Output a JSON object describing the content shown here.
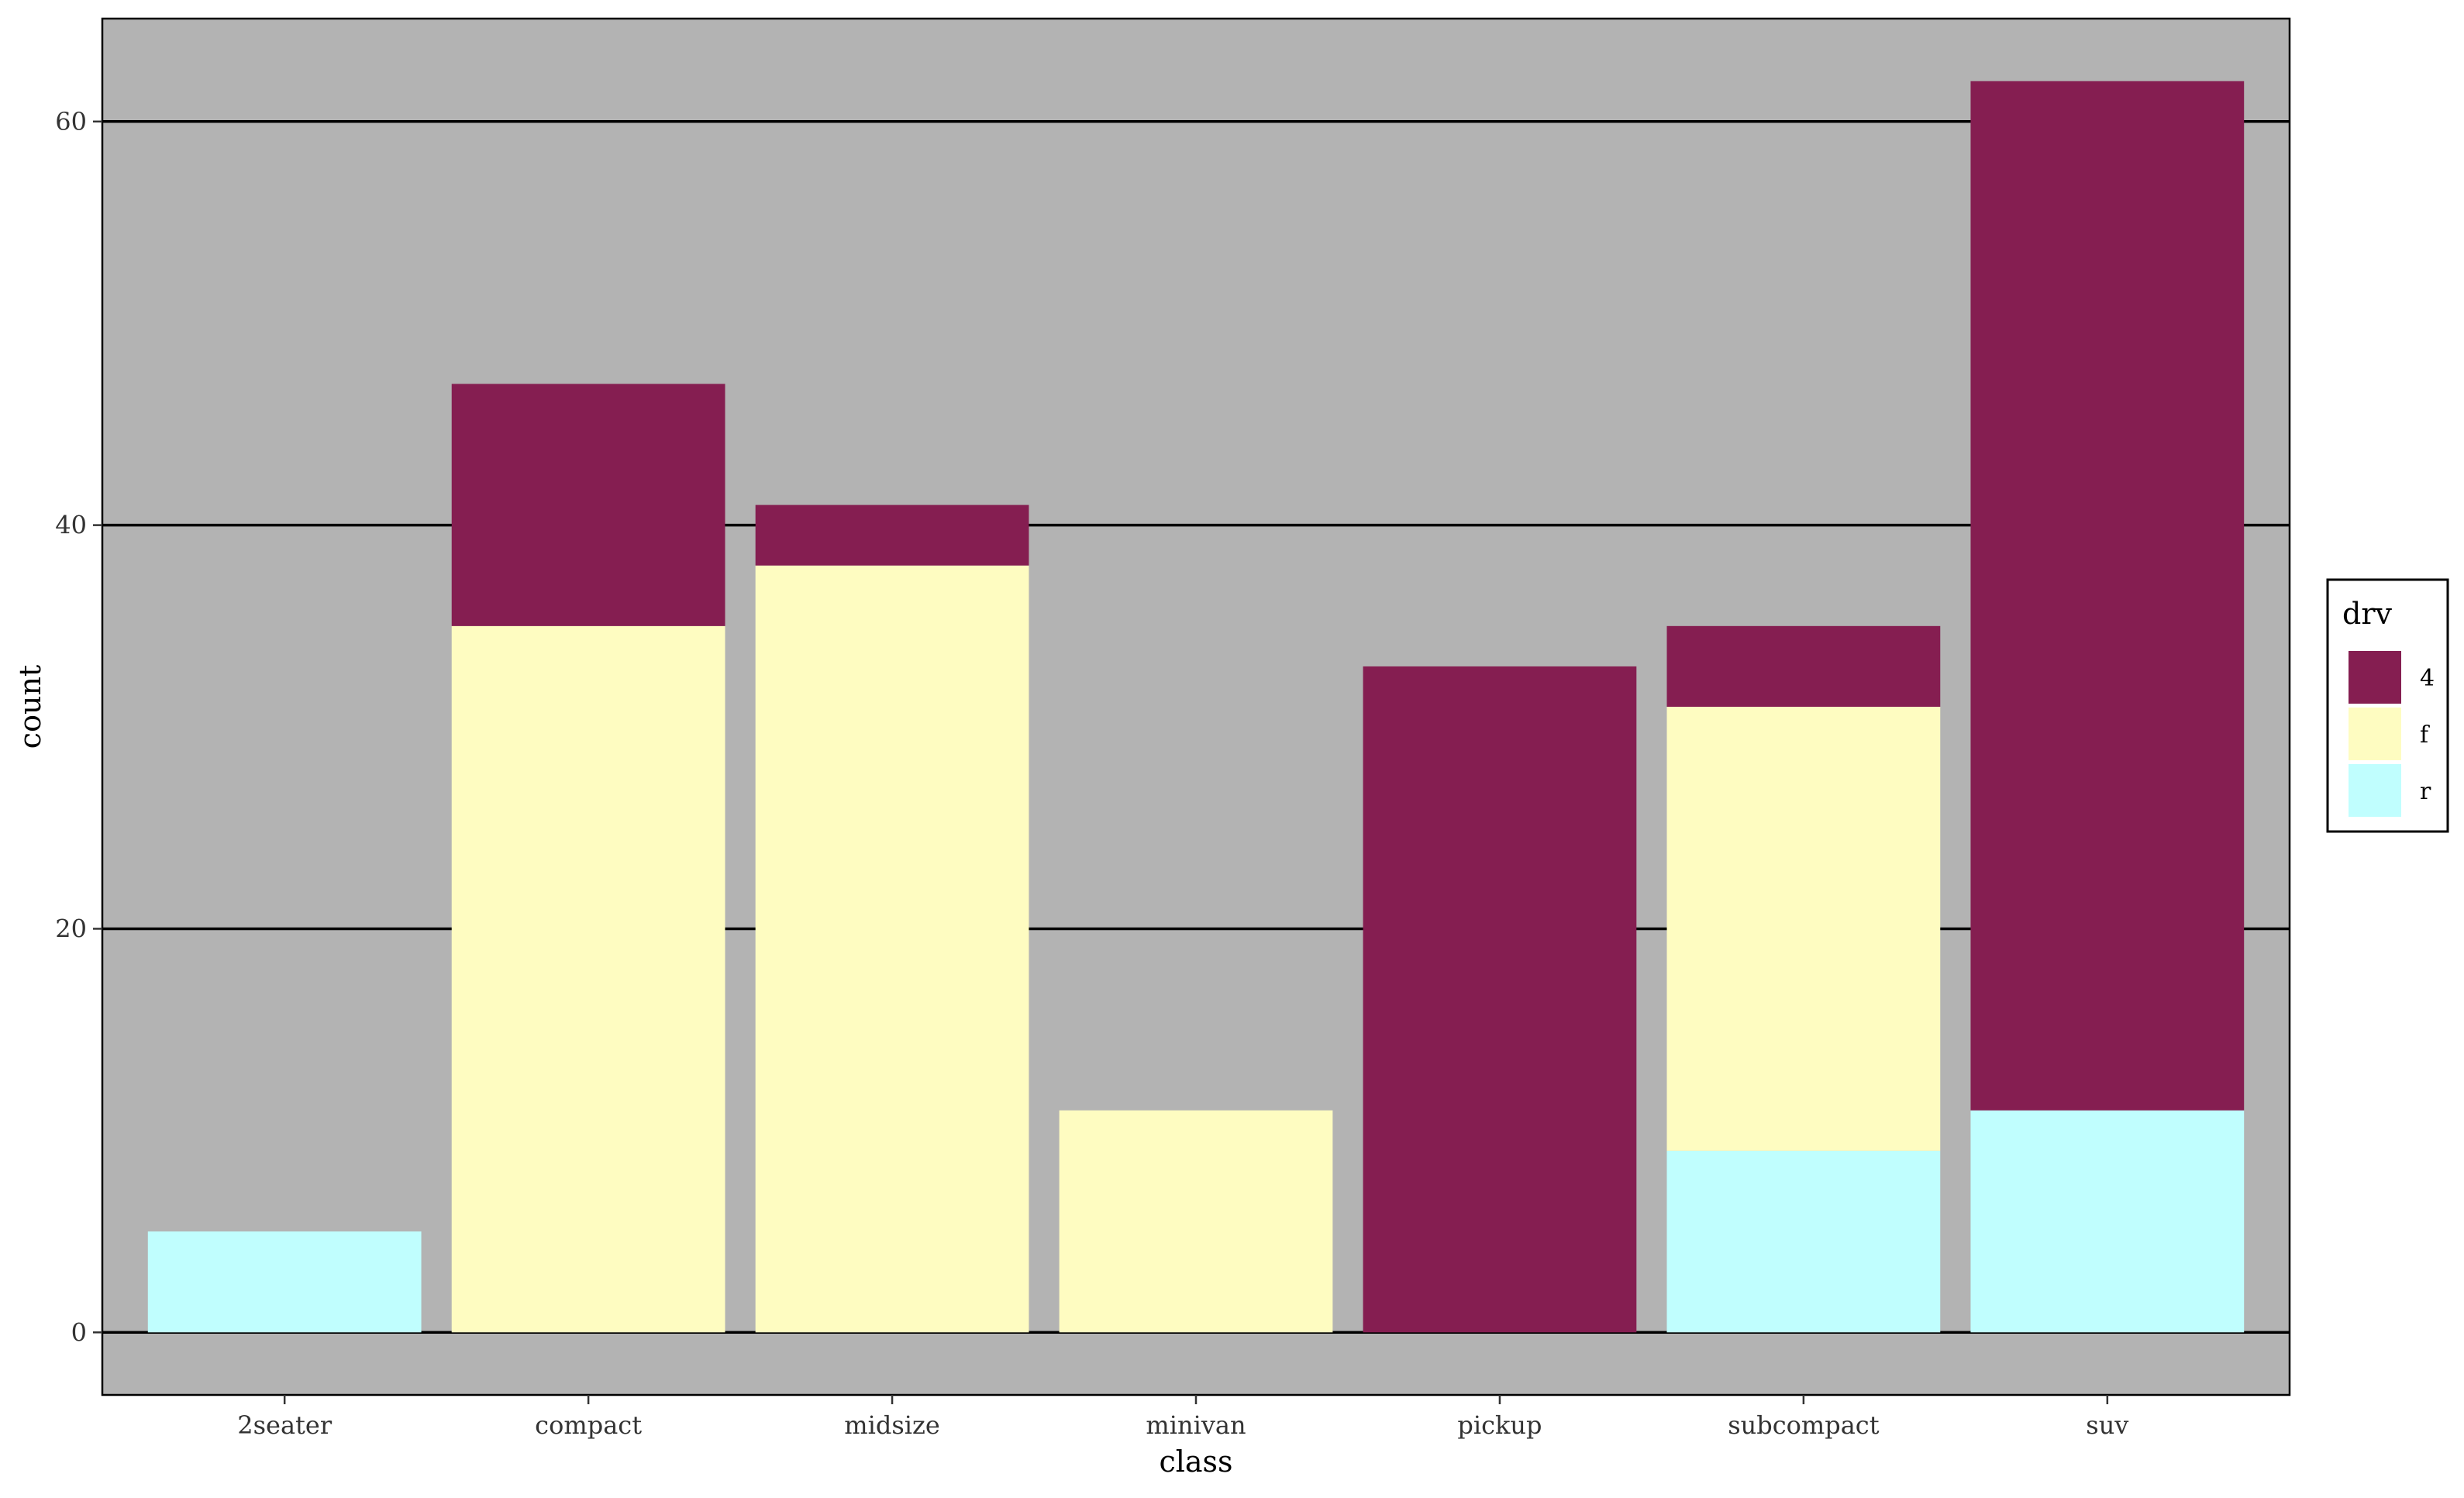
{
  "chart_data": {
    "type": "bar",
    "stacked": true,
    "categories": [
      "2seater",
      "compact",
      "midsize",
      "minivan",
      "pickup",
      "subcompact",
      "suv"
    ],
    "series": [
      {
        "name": "4",
        "color": "#851e51",
        "values": [
          0,
          12,
          3,
          0,
          33,
          4,
          51
        ]
      },
      {
        "name": "f",
        "color": "#fefcc1",
        "values": [
          0,
          35,
          38,
          11,
          0,
          22,
          0
        ]
      },
      {
        "name": "r",
        "color": "#c0fefe",
        "values": [
          5,
          0,
          0,
          0,
          0,
          9,
          11
        ]
      }
    ],
    "stack_order_bottom_to_top": [
      "r",
      "f",
      "4"
    ],
    "xlabel": "class",
    "ylabel": "count",
    "ylim": [
      -3.1,
      65.1
    ],
    "yticks": [
      0,
      20,
      40,
      60
    ],
    "grid": true,
    "panel_background": "#b3b3b3",
    "grid_color": "#000000",
    "legend": {
      "title": "drv",
      "position": "right"
    }
  }
}
